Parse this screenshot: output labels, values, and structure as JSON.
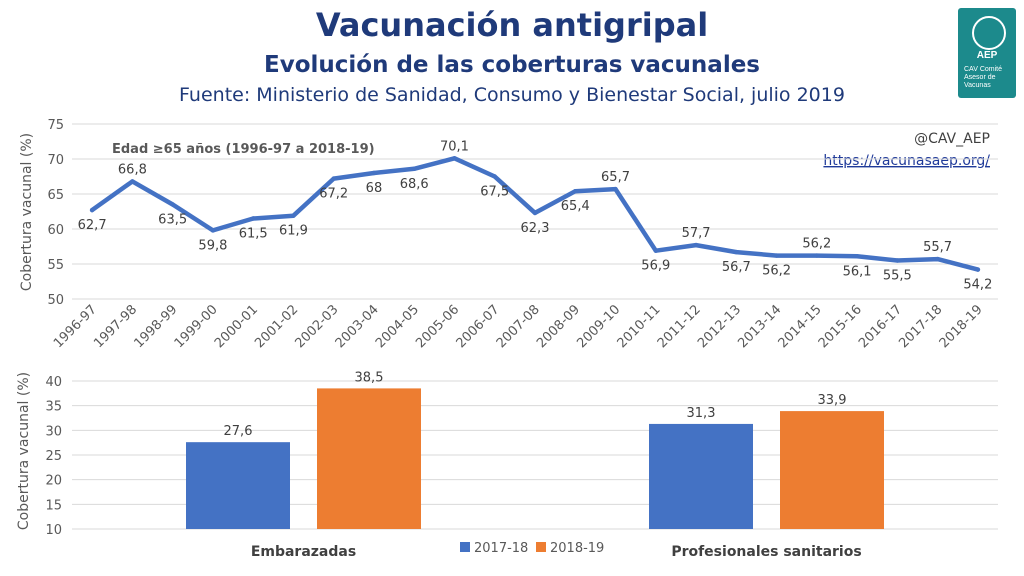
{
  "header": {
    "title": "Vacunación antigripal",
    "subtitle": "Evolución de las coberturas vacunales",
    "source": "Fuente: Ministerio de Sanidad, Consumo y Bienestar Social, julio 2019"
  },
  "logo": {
    "text": "AEP",
    "caption": "CAV Comité Asesor de Vacunas"
  },
  "chart_data": [
    {
      "type": "line",
      "annotation": "Edad ≥65 años (1996-97 a 2018-19)",
      "handle": "@CAV_AEP",
      "url": "https://vacunasaep.org/",
      "ylabel": "Cobertura vacunal (%)",
      "xlabel": "",
      "ylim": [
        50,
        75
      ],
      "yticks": [
        50,
        55,
        60,
        65,
        70,
        75
      ],
      "grid": true,
      "color": "#4472c4",
      "categories": [
        "1996-97",
        "1997-98",
        "1998-99",
        "1999-00",
        "2000-01",
        "2001-02",
        "2002-03",
        "2003-04",
        "2004-05",
        "2005-06",
        "2006-07",
        "2007-08",
        "2008-09",
        "2009-10",
        "2010-11",
        "2011-12",
        "2012-13",
        "2013-14",
        "2014-15",
        "2015-16",
        "2016-17",
        "2017-18",
        "2018-19"
      ],
      "values": [
        62.7,
        66.8,
        63.5,
        59.8,
        61.5,
        61.9,
        67.2,
        68,
        68.6,
        70.1,
        67.5,
        62.3,
        65.4,
        65.7,
        56.9,
        57.7,
        56.7,
        56.2,
        56.2,
        56.1,
        55.5,
        55.7,
        54.2
      ],
      "labels": [
        "62,7",
        "66,8",
        "63,5",
        "59,8",
        "61,5",
        "61,9",
        "67,2",
        "68",
        "68,6",
        "70,1",
        "67,5",
        "62,3",
        "65,4",
        "65,7",
        "56,9",
        "57,7",
        "56,7",
        "56,2",
        "56,2",
        "56,1",
        "55,5",
        "55,7",
        "54,2"
      ]
    },
    {
      "type": "bar",
      "ylabel": "Cobertura vacunal (%)",
      "xlabel": "",
      "ylim": [
        10,
        40
      ],
      "yticks": [
        10,
        15,
        20,
        25,
        30,
        35,
        40
      ],
      "grid": true,
      "legend": "bottom",
      "categories": [
        "Embarazadas",
        "Profesionales sanitarios"
      ],
      "series": [
        {
          "name": "2017-18",
          "color": "#4472c4",
          "values": [
            27.6,
            31.3
          ],
          "labels": [
            "27,6",
            "31,3"
          ]
        },
        {
          "name": "2018-19",
          "color": "#ed7d31",
          "values": [
            38.5,
            33.9
          ],
          "labels": [
            "38,5",
            "33,9"
          ]
        }
      ]
    }
  ]
}
